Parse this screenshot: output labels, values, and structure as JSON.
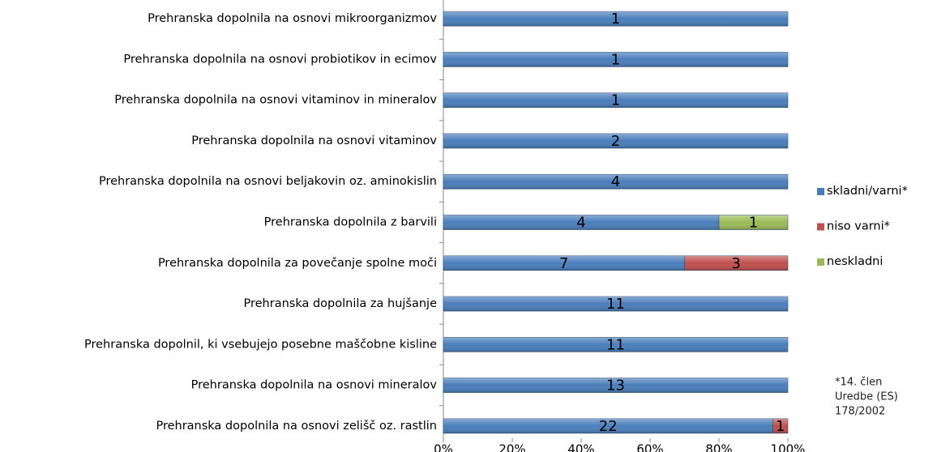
{
  "chart_data": {
    "type": "bar",
    "orientation": "horizontal",
    "stacking": "percent",
    "categories": [
      "Prehranska dopolnila na osnovi mikroorganizmov",
      "Prehranska dopolnila na osnovi probiotikov in ecimov",
      "Prehranska dopolnila na osnovi vitaminov in mineralov",
      "Prehranska dopolnila na osnovi vitaminov",
      "Prehranska dopolnila na osnovi beljakovin oz. aminokislin",
      "Prehranska dopolnila z barvili",
      "Prehranska dopolnila za povečanje spolne moči",
      "Prehranska dopolnila za hujšanje",
      "Prehranska dopolnil, ki vsebujejo posebne maščobne kisline",
      "Prehranska dopolnila na osnovi mineralov",
      "Prehranska dopolnila na osnovi zelišč oz. rastlin"
    ],
    "series": [
      {
        "name": "skladni/varni*",
        "color": "#4a7ebb",
        "values": [
          1,
          1,
          1,
          2,
          4,
          4,
          7,
          11,
          11,
          13,
          22
        ]
      },
      {
        "name": "niso varni*",
        "color": "#c0504d",
        "values": [
          null,
          null,
          null,
          null,
          null,
          null,
          3,
          null,
          null,
          null,
          1
        ]
      },
      {
        "name": "neskladni",
        "color": "#9bbb59",
        "values": [
          null,
          null,
          null,
          null,
          null,
          1,
          null,
          null,
          null,
          null,
          null
        ]
      }
    ],
    "xlim": [
      0,
      100
    ],
    "xticks": [
      {
        "value": 0,
        "label": "0%"
      },
      {
        "value": 20,
        "label": "20%"
      },
      {
        "value": 40,
        "label": "40%"
      },
      {
        "value": 60,
        "label": "60%"
      },
      {
        "value": 80,
        "label": "80%"
      },
      {
        "value": 100,
        "label": "100%"
      }
    ],
    "legend": "right",
    "annotation": [
      "*14. člen",
      "Uredbe (ES)",
      "178/2002"
    ]
  }
}
